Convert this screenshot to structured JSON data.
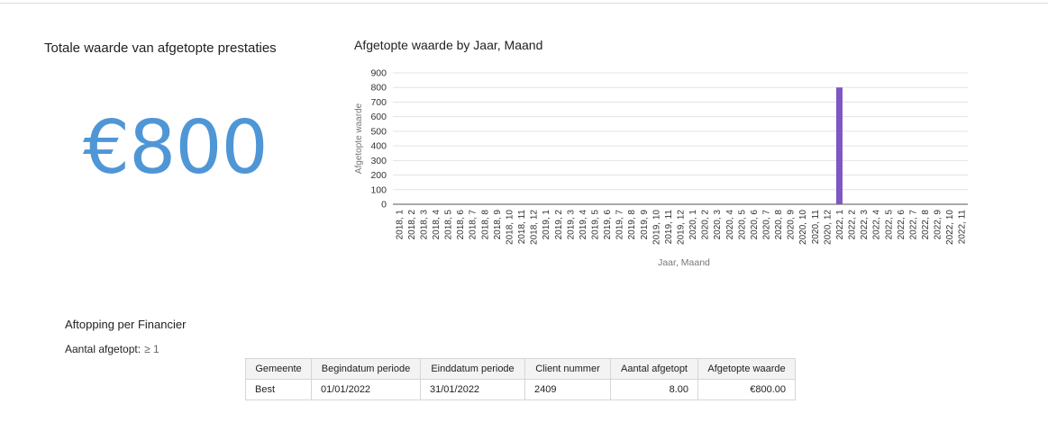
{
  "kpi": {
    "title": "Totale waarde van afgetopte prestaties",
    "value": "€800",
    "color": "#4f96d6"
  },
  "chart_title": "Afgetopte waarde by Jaar, Maand",
  "chart_data": {
    "type": "bar",
    "title": "Afgetopte waarde by Jaar, Maand",
    "xlabel": "Jaar, Maand",
    "ylabel": "Afgetopte waarde",
    "ylim": [
      0,
      900
    ],
    "yticks": [
      0,
      100,
      200,
      300,
      400,
      500,
      600,
      700,
      800,
      900
    ],
    "grid": true,
    "bar_color": "#7e57c2",
    "categories": [
      "2018, 1",
      "2018, 2",
      "2018, 3",
      "2018, 4",
      "2018, 5",
      "2018, 6",
      "2018, 7",
      "2018, 8",
      "2018, 9",
      "2018, 10",
      "2018, 11",
      "2018, 12",
      "2019, 1",
      "2019, 2",
      "2019, 3",
      "2019, 4",
      "2019, 5",
      "2019, 6",
      "2019, 7",
      "2019, 8",
      "2019, 9",
      "2019, 10",
      "2019, 11",
      "2019, 12",
      "2020, 1",
      "2020, 2",
      "2020, 3",
      "2020, 4",
      "2020, 5",
      "2020, 6",
      "2020, 7",
      "2020, 8",
      "2020, 9",
      "2020, 10",
      "2020, 11",
      "2020, 12",
      "2022, 1",
      "2022, 2",
      "2022, 3",
      "2022, 4",
      "2022, 5",
      "2022, 6",
      "2022, 7",
      "2022, 8",
      "2022, 9",
      "2022, 10",
      "2022, 11"
    ],
    "values": [
      0,
      0,
      0,
      0,
      0,
      0,
      0,
      0,
      0,
      0,
      0,
      0,
      0,
      0,
      0,
      0,
      0,
      0,
      0,
      0,
      0,
      0,
      0,
      0,
      0,
      0,
      0,
      0,
      0,
      0,
      0,
      0,
      0,
      0,
      0,
      0,
      800,
      0,
      0,
      0,
      0,
      0,
      0,
      0,
      0,
      0,
      0
    ]
  },
  "section": {
    "title": "Aftopping per Financier",
    "filter_label": "Aantal afgetopt:",
    "filter_value": "≥ 1"
  },
  "table": {
    "headers": [
      "Gemeente",
      "Begindatum periode",
      "Einddatum periode",
      "Client nummer",
      "Aantal afgetopt",
      "Afgetopte waarde"
    ],
    "rows": [
      [
        "Best",
        "01/01/2022",
        "31/01/2022",
        "2409",
        "8.00",
        "€800.00"
      ]
    ]
  }
}
